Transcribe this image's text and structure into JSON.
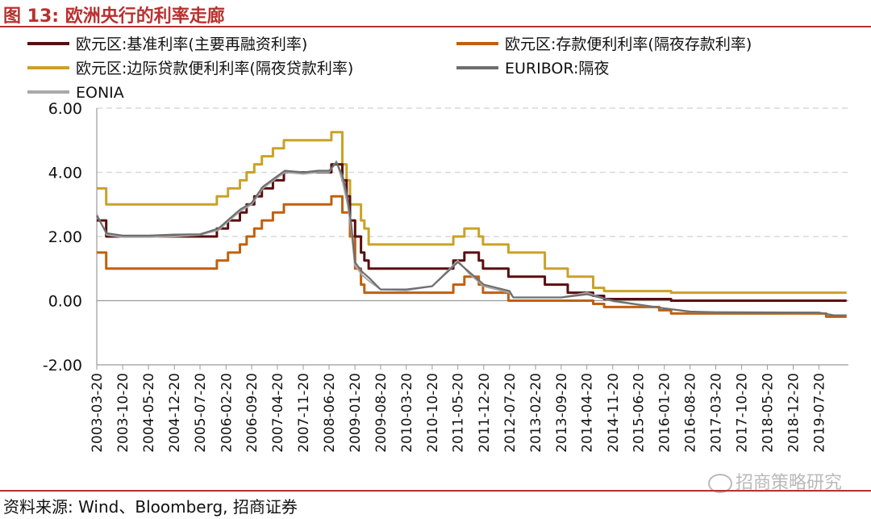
{
  "figure": {
    "title": "图 13:  欧洲央行的利率走廊",
    "source": "资料来源: Wind、Bloomberg, 招商证券",
    "watermark": "招商策略研究",
    "watermark_icon": "wechat-icon"
  },
  "chart_data": {
    "type": "line",
    "title": "",
    "xlabel": "",
    "ylabel": "",
    "ylim": [
      -2,
      6
    ],
    "xlim": [
      "2003-03-20",
      "2020-03-20"
    ],
    "yticks": [
      "6.00",
      "4.00",
      "2.00",
      "0.00",
      "-2.00"
    ],
    "ytick_values": [
      6,
      4,
      2,
      0,
      -2
    ],
    "xticks": [
      "2003-03-20",
      "2003-10-20",
      "2004-05-20",
      "2004-12-20",
      "2005-07-20",
      "2006-02-20",
      "2006-09-20",
      "2007-04-20",
      "2007-11-20",
      "2008-06-20",
      "2009-01-20",
      "2009-08-20",
      "2010-03-20",
      "2010-10-20",
      "2011-05-20",
      "2011-12-20",
      "2012-07-20",
      "2013-02-20",
      "2013-09-20",
      "2014-04-20",
      "2014-11-20",
      "2015-06-20",
      "2016-01-20",
      "2016-08-20",
      "2017-03-20",
      "2017-10-20",
      "2018-05-20",
      "2018-12-20",
      "2019-07-20"
    ],
    "grid": "horizontal-dashed",
    "legend_position": "top",
    "series": [
      {
        "name": "欧元区:基准利率(主要再融资利率)",
        "color": "#5a0e0e",
        "style": "step",
        "points": [
          [
            "2003-03-06",
            2.5
          ],
          [
            "2003-06-06",
            2.0
          ],
          [
            "2005-12-06",
            2.25
          ],
          [
            "2006-03-08",
            2.5
          ],
          [
            "2006-06-15",
            2.75
          ],
          [
            "2006-08-09",
            3.0
          ],
          [
            "2006-10-11",
            3.25
          ],
          [
            "2006-12-13",
            3.5
          ],
          [
            "2007-03-14",
            3.75
          ],
          [
            "2007-06-13",
            4.0
          ],
          [
            "2008-07-09",
            4.25
          ],
          [
            "2008-10-08",
            3.75
          ],
          [
            "2008-10-15",
            3.75
          ],
          [
            "2008-11-12",
            3.25
          ],
          [
            "2008-12-10",
            2.5
          ],
          [
            "2009-01-21",
            2.0
          ],
          [
            "2009-03-11",
            1.5
          ],
          [
            "2009-04-08",
            1.25
          ],
          [
            "2009-05-13",
            1.0
          ],
          [
            "2011-04-13",
            1.25
          ],
          [
            "2011-07-13",
            1.5
          ],
          [
            "2011-11-09",
            1.25
          ],
          [
            "2011-12-14",
            1.0
          ],
          [
            "2012-07-11",
            0.75
          ],
          [
            "2013-05-08",
            0.5
          ],
          [
            "2013-11-13",
            0.25
          ],
          [
            "2014-06-11",
            0.15
          ],
          [
            "2014-09-10",
            0.05
          ],
          [
            "2016-03-16",
            0.0
          ],
          [
            "2020-03-05",
            0.0
          ]
        ]
      },
      {
        "name": "欧元区:存款便利利率(隔夜存款利率)",
        "color": "#c0600e",
        "style": "step",
        "points": [
          [
            "2003-03-06",
            1.5
          ],
          [
            "2003-06-06",
            1.0
          ],
          [
            "2005-12-06",
            1.25
          ],
          [
            "2006-03-08",
            1.5
          ],
          [
            "2006-06-15",
            1.75
          ],
          [
            "2006-08-09",
            2.0
          ],
          [
            "2006-10-11",
            2.25
          ],
          [
            "2006-12-13",
            2.5
          ],
          [
            "2007-03-14",
            2.75
          ],
          [
            "2007-06-13",
            3.0
          ],
          [
            "2008-07-09",
            3.25
          ],
          [
            "2008-10-08",
            2.75
          ],
          [
            "2008-11-12",
            2.75
          ],
          [
            "2008-12-10",
            2.0
          ],
          [
            "2009-01-21",
            1.0
          ],
          [
            "2009-03-11",
            0.5
          ],
          [
            "2009-04-08",
            0.25
          ],
          [
            "2011-04-13",
            0.5
          ],
          [
            "2011-07-13",
            0.75
          ],
          [
            "2011-11-09",
            0.5
          ],
          [
            "2011-12-14",
            0.25
          ],
          [
            "2012-07-11",
            0.0
          ],
          [
            "2014-06-11",
            -0.1
          ],
          [
            "2014-09-10",
            -0.2
          ],
          [
            "2015-12-09",
            -0.3
          ],
          [
            "2016-03-16",
            -0.4
          ],
          [
            "2019-09-18",
            -0.5
          ],
          [
            "2020-03-05",
            -0.5
          ]
        ]
      },
      {
        "name": "欧元区:边际贷款便利利率(隔夜贷款利率)",
        "color": "#c9a227",
        "style": "step",
        "points": [
          [
            "2003-03-06",
            3.5
          ],
          [
            "2003-06-06",
            3.0
          ],
          [
            "2005-12-06",
            3.25
          ],
          [
            "2006-03-08",
            3.5
          ],
          [
            "2006-06-15",
            3.75
          ],
          [
            "2006-08-09",
            4.0
          ],
          [
            "2006-10-11",
            4.25
          ],
          [
            "2006-12-13",
            4.5
          ],
          [
            "2007-03-14",
            4.75
          ],
          [
            "2007-06-13",
            5.0
          ],
          [
            "2008-07-09",
            5.25
          ],
          [
            "2008-10-08",
            4.25
          ],
          [
            "2008-11-12",
            3.75
          ],
          [
            "2008-12-10",
            3.0
          ],
          [
            "2009-01-21",
            3.0
          ],
          [
            "2009-03-11",
            2.5
          ],
          [
            "2009-04-08",
            2.25
          ],
          [
            "2009-05-13",
            1.75
          ],
          [
            "2011-04-13",
            2.0
          ],
          [
            "2011-07-13",
            2.25
          ],
          [
            "2011-11-09",
            2.0
          ],
          [
            "2011-12-14",
            1.75
          ],
          [
            "2012-07-11",
            1.5
          ],
          [
            "2013-05-08",
            1.0
          ],
          [
            "2013-11-13",
            0.75
          ],
          [
            "2014-06-11",
            0.4
          ],
          [
            "2014-09-10",
            0.3
          ],
          [
            "2016-03-16",
            0.25
          ],
          [
            "2020-03-05",
            0.25
          ]
        ]
      },
      {
        "name": "EURIBOR:隔夜",
        "color": "#6e6e6e",
        "style": "line",
        "points": [
          [
            "2003-03-20",
            2.65
          ],
          [
            "2003-06-10",
            2.1
          ],
          [
            "2003-10-20",
            2.03
          ],
          [
            "2004-05-20",
            2.03
          ],
          [
            "2004-12-20",
            2.06
          ],
          [
            "2005-07-20",
            2.07
          ],
          [
            "2005-12-20",
            2.25
          ],
          [
            "2006-03-20",
            2.55
          ],
          [
            "2006-06-20",
            2.85
          ],
          [
            "2006-09-20",
            3.05
          ],
          [
            "2006-12-20",
            3.55
          ],
          [
            "2007-03-20",
            3.8
          ],
          [
            "2007-06-20",
            4.05
          ],
          [
            "2007-11-20",
            4.0
          ],
          [
            "2008-03-20",
            4.05
          ],
          [
            "2008-06-20",
            4.05
          ],
          [
            "2008-08-20",
            4.3
          ],
          [
            "2008-10-10",
            3.9
          ],
          [
            "2008-11-20",
            3.2
          ],
          [
            "2008-12-20",
            2.4
          ],
          [
            "2009-01-20",
            1.2
          ],
          [
            "2009-03-20",
            0.9
          ],
          [
            "2009-05-20",
            0.7
          ],
          [
            "2009-08-20",
            0.35
          ],
          [
            "2010-03-20",
            0.35
          ],
          [
            "2010-10-20",
            0.45
          ],
          [
            "2011-05-20",
            1.2
          ],
          [
            "2011-08-20",
            0.9
          ],
          [
            "2011-12-20",
            0.5
          ],
          [
            "2012-07-20",
            0.3
          ],
          [
            "2012-08-20",
            0.1
          ],
          [
            "2013-09-20",
            0.1
          ],
          [
            "2014-04-20",
            0.2
          ],
          [
            "2014-11-20",
            0.0
          ],
          [
            "2015-06-20",
            -0.12
          ],
          [
            "2016-01-20",
            -0.24
          ],
          [
            "2016-08-20",
            -0.34
          ],
          [
            "2017-03-20",
            -0.36
          ],
          [
            "2019-07-20",
            -0.37
          ],
          [
            "2019-11-20",
            -0.46
          ],
          [
            "2020-03-05",
            -0.46
          ]
        ]
      },
      {
        "name": "EONIA",
        "color": "#a9a9a9",
        "style": "line",
        "points": [
          [
            "2003-03-20",
            2.7
          ],
          [
            "2003-06-10",
            2.05
          ],
          [
            "2003-10-20",
            1.98
          ],
          [
            "2004-05-20",
            1.98
          ],
          [
            "2004-12-20",
            2.0
          ],
          [
            "2005-07-20",
            2.05
          ],
          [
            "2005-12-20",
            2.2
          ],
          [
            "2006-03-20",
            2.5
          ],
          [
            "2006-06-20",
            2.8
          ],
          [
            "2006-09-20",
            3.0
          ],
          [
            "2006-12-20",
            3.5
          ],
          [
            "2007-03-20",
            3.75
          ],
          [
            "2007-06-20",
            4.0
          ],
          [
            "2007-11-20",
            3.95
          ],
          [
            "2008-03-20",
            4.0
          ],
          [
            "2008-06-20",
            4.0
          ],
          [
            "2008-08-20",
            4.35
          ],
          [
            "2008-10-10",
            3.7
          ],
          [
            "2008-11-20",
            3.0
          ],
          [
            "2008-12-20",
            2.2
          ],
          [
            "2009-01-20",
            1.1
          ],
          [
            "2009-03-20",
            0.8
          ],
          [
            "2009-05-20",
            0.6
          ],
          [
            "2009-08-20",
            0.35
          ],
          [
            "2010-03-20",
            0.32
          ],
          [
            "2010-10-20",
            0.45
          ],
          [
            "2011-05-20",
            1.25
          ],
          [
            "2011-08-20",
            0.85
          ],
          [
            "2011-12-20",
            0.45
          ],
          [
            "2012-07-20",
            0.25
          ],
          [
            "2012-08-20",
            0.1
          ],
          [
            "2013-09-20",
            0.1
          ],
          [
            "2014-04-20",
            0.25
          ],
          [
            "2014-11-20",
            -0.02
          ],
          [
            "2015-06-20",
            -0.13
          ],
          [
            "2016-01-20",
            -0.24
          ],
          [
            "2016-08-20",
            -0.35
          ],
          [
            "2017-03-20",
            -0.36
          ],
          [
            "2019-07-20",
            -0.37
          ],
          [
            "2019-11-20",
            -0.45
          ],
          [
            "2020-03-05",
            -0.45
          ]
        ]
      }
    ]
  }
}
